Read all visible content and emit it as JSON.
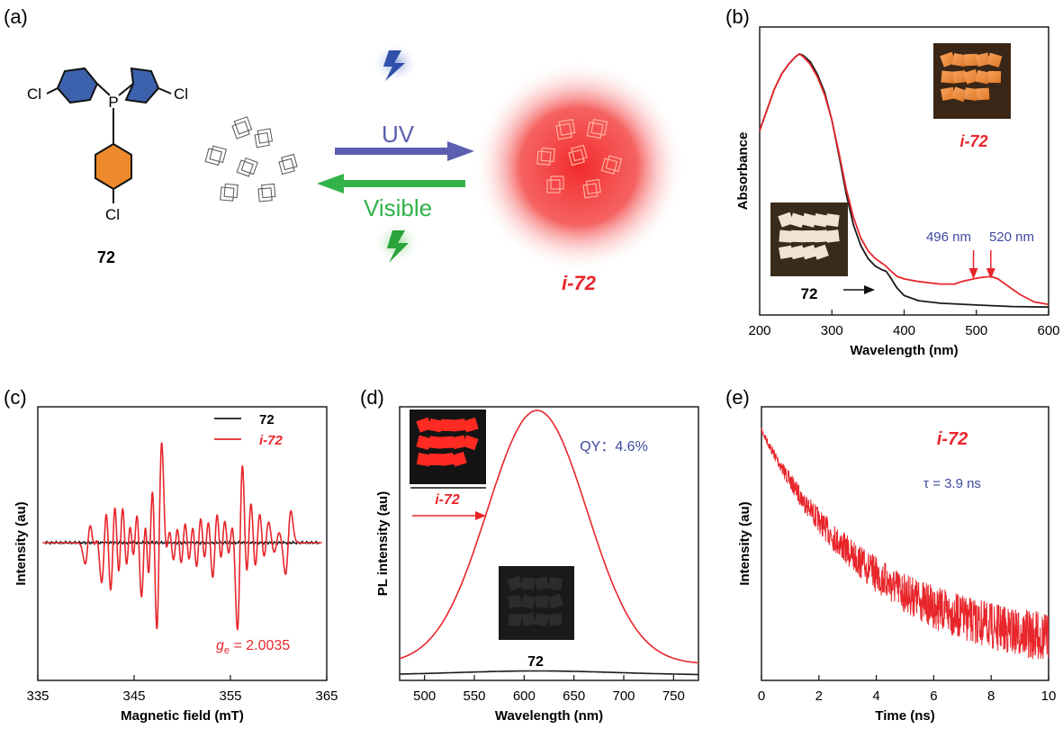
{
  "panel_a": {
    "label": "(a)",
    "molecule_label": "72",
    "cl_labels": [
      "Cl",
      "Cl",
      "Cl"
    ],
    "p_label": "P",
    "forward_label": "UV",
    "reverse_label": "Visible",
    "product_label": "i-72",
    "colors": {
      "uv": "#5a5fb0",
      "visible": "#33b24a",
      "product": "#e8262b",
      "ring_blue": "#3d62ad",
      "ring_orange": "#ee8a2b"
    }
  },
  "chart_data": [
    {
      "panel": "(b)",
      "type": "line",
      "xlabel": "Wavelength (nm)",
      "ylabel": "Absorbance",
      "xlim": [
        200,
        600
      ],
      "xticks": [
        "200",
        "300",
        "400",
        "500",
        "600"
      ],
      "series": [
        {
          "name": "72",
          "color": "#1a1a1a",
          "x": [
            200,
            210,
            220,
            230,
            240,
            250,
            255,
            260,
            270,
            280,
            290,
            300,
            310,
            320,
            330,
            340,
            350,
            360,
            370,
            375,
            380,
            390,
            400,
            420,
            450,
            500,
            550,
            600
          ],
          "y": [
            0.7,
            0.78,
            0.86,
            0.92,
            0.96,
            0.99,
            1.0,
            0.995,
            0.97,
            0.92,
            0.85,
            0.74,
            0.6,
            0.45,
            0.33,
            0.25,
            0.2,
            0.17,
            0.155,
            0.15,
            0.13,
            0.085,
            0.055,
            0.035,
            0.025,
            0.018,
            0.012,
            0.01
          ]
        },
        {
          "name": "i-72",
          "color": "#e8262b",
          "x": [
            200,
            210,
            220,
            230,
            240,
            250,
            255,
            260,
            270,
            280,
            290,
            300,
            310,
            320,
            330,
            340,
            350,
            360,
            370,
            375,
            380,
            390,
            400,
            420,
            450,
            470,
            480,
            496,
            505,
            520,
            530,
            540,
            560,
            580,
            600
          ],
          "y": [
            0.7,
            0.78,
            0.86,
            0.92,
            0.96,
            0.99,
            1.0,
            0.99,
            0.96,
            0.91,
            0.84,
            0.74,
            0.61,
            0.47,
            0.36,
            0.28,
            0.23,
            0.2,
            0.18,
            0.17,
            0.155,
            0.13,
            0.12,
            0.11,
            0.1,
            0.1,
            0.11,
            0.12,
            0.125,
            0.13,
            0.12,
            0.1,
            0.06,
            0.03,
            0.02
          ]
        }
      ],
      "annotations": [
        "496 nm",
        "520 nm",
        "72",
        "i-72"
      ],
      "arrow_x": [
        496,
        520
      ],
      "inset_labels": {
        "dark": "72",
        "light": "i-72"
      }
    },
    {
      "panel": "(c)",
      "type": "line",
      "xlabel": "Magnetic field (mT)",
      "ylabel": "Intensity (au)",
      "xlim": [
        335,
        365
      ],
      "xticks": [
        "335",
        "345",
        "355",
        "365"
      ],
      "legend": [
        "72",
        "i-72"
      ],
      "legend_position": "top-right",
      "g_label": "g",
      "g_sub": "e",
      "g_value": " = 2.0035",
      "series": [
        {
          "name": "72",
          "color": "#1a1a1a",
          "baseline": 0
        },
        {
          "name": "i-72",
          "color": "#e8262b",
          "lines": [
            {
              "x": 340.2,
              "a": 0.2
            },
            {
              "x": 341.0,
              "a": 0.08
            },
            {
              "x": 341.9,
              "a": 0.4
            },
            {
              "x": 342.8,
              "a": 0.55
            },
            {
              "x": 343.6,
              "a": 0.5
            },
            {
              "x": 344.4,
              "a": 0.4
            },
            {
              "x": 345.1,
              "a": 0.38
            },
            {
              "x": 346.0,
              "a": 0.6
            },
            {
              "x": 346.7,
              "a": 0.7
            },
            {
              "x": 347.6,
              "a": 1.0
            },
            {
              "x": 348.5,
              "a": 0.2
            },
            {
              "x": 349.3,
              "a": 0.25
            },
            {
              "x": 350.1,
              "a": 0.3
            },
            {
              "x": 350.9,
              "a": 0.28
            },
            {
              "x": 351.7,
              "a": 0.35
            },
            {
              "x": 352.5,
              "a": 0.28
            },
            {
              "x": 353.4,
              "a": 0.4
            },
            {
              "x": 354.2,
              "a": 0.3
            },
            {
              "x": 355.0,
              "a": 0.22
            },
            {
              "x": 356.0,
              "a": 0.85
            },
            {
              "x": 356.9,
              "a": 0.45
            },
            {
              "x": 357.8,
              "a": 0.32
            },
            {
              "x": 358.7,
              "a": 0.2
            },
            {
              "x": 359.8,
              "a": 0.1
            },
            {
              "x": 361.0,
              "a": 0.3
            }
          ]
        }
      ]
    },
    {
      "panel": "(d)",
      "type": "line",
      "xlabel": "Wavelength (nm)",
      "ylabel": "PL intensity (au)",
      "xlim": [
        475,
        775
      ],
      "xticks": [
        "500",
        "550",
        "600",
        "650",
        "700",
        "750"
      ],
      "qy_label": "QY：4.6%",
      "inset_labels": {
        "bright": "i-72",
        "dark": "72"
      },
      "series": [
        {
          "name": "i-72",
          "color": "#e8262b",
          "peak": 613,
          "amplitude": 0.94,
          "sigma": 50,
          "offset": 0.06
        },
        {
          "name": "72",
          "color": "#1a1a1a",
          "peak": 613,
          "amplitude": 0.015,
          "sigma": 80,
          "offset": 0.02
        }
      ]
    },
    {
      "panel": "(e)",
      "type": "line",
      "xlabel": "Time (ns)",
      "ylabel": "Intensity (au)",
      "xlim": [
        0,
        10
      ],
      "xticks": [
        "0",
        "2",
        "4",
        "6",
        "8",
        "10"
      ],
      "sample_label": "i-72",
      "tau_label": "τ = 3.9 ns",
      "series": [
        {
          "name": "i-72",
          "color": "#e8262b",
          "tau": 3.9
        }
      ]
    }
  ]
}
